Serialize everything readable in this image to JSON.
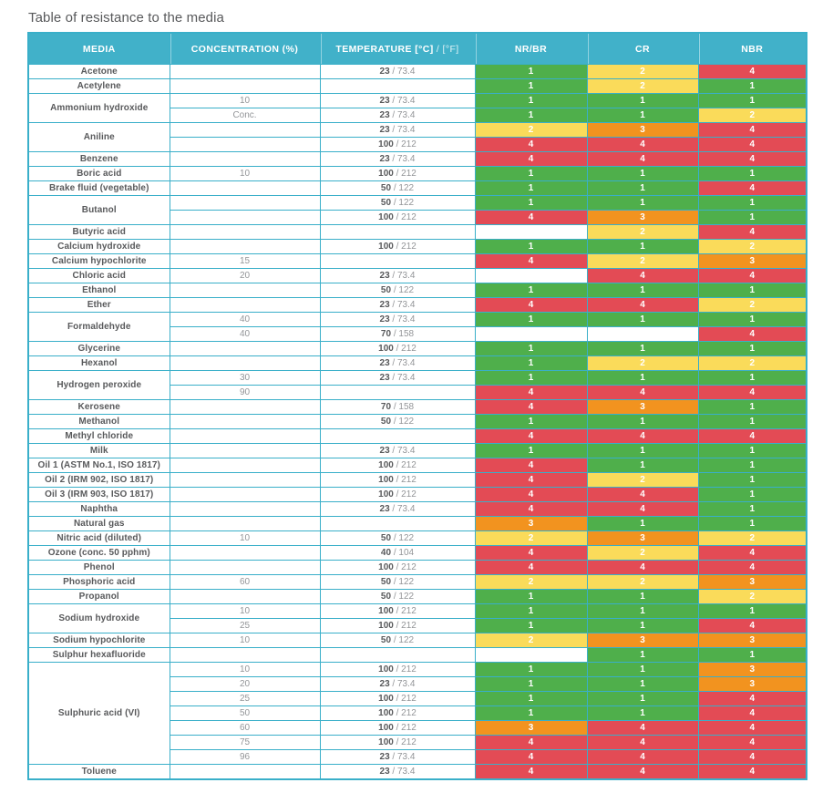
{
  "title": "Table of resistance to the media",
  "colors": {
    "header_bg": "#41B1C9",
    "border": "#39AFC9",
    "stripe": "#ECEDEE",
    "media_text": "#58595B",
    "secondary_text": "#939598"
  },
  "table": {
    "headers": {
      "media": "MEDIA",
      "concentration": "CONCENTRATION (%)",
      "temperature_bold": "TEMPERATURE [°C]",
      "temperature_light": " / [°F]",
      "ratings": [
        "NR/BR",
        "CR",
        "NBR"
      ]
    },
    "rating_colors": {
      "1": "#4FAF4B",
      "2": "#FADB5A",
      "3": "#F2931F",
      "4": "#E34B55"
    },
    "groups": [
      {
        "media": "Acetone",
        "shaded": true,
        "rows": [
          {
            "conc": "",
            "tc": "23",
            "tf": "73.4",
            "r": [
              1,
              2,
              4
            ]
          }
        ]
      },
      {
        "media": "Acetylene",
        "shaded": false,
        "rows": [
          {
            "conc": "",
            "tc": "",
            "tf": "",
            "r": [
              1,
              2,
              1
            ]
          }
        ]
      },
      {
        "media": "Ammonium hydroxide",
        "shaded": true,
        "rows": [
          {
            "conc": "10",
            "tc": "23",
            "tf": "73.4",
            "r": [
              1,
              1,
              1
            ]
          },
          {
            "conc": "Conc.",
            "tc": "23",
            "tf": "73.4",
            "r": [
              1,
              1,
              2
            ]
          }
        ]
      },
      {
        "media": "Aniline",
        "shaded": false,
        "rows": [
          {
            "conc": "",
            "tc": "23",
            "tf": "73.4",
            "r": [
              2,
              3,
              4
            ]
          },
          {
            "conc": "",
            "tc": "100",
            "tf": "212",
            "r": [
              4,
              4,
              4
            ]
          }
        ]
      },
      {
        "media": "Benzene",
        "shaded": true,
        "rows": [
          {
            "conc": "",
            "tc": "23",
            "tf": "73.4",
            "r": [
              4,
              4,
              4
            ]
          }
        ]
      },
      {
        "media": "Boric acid",
        "shaded": false,
        "rows": [
          {
            "conc": "10",
            "tc": "100",
            "tf": "212",
            "r": [
              1,
              1,
              1
            ]
          }
        ]
      },
      {
        "media": "Brake fluid (vegetable)",
        "shaded": true,
        "rows": [
          {
            "conc": "",
            "tc": "50",
            "tf": "122",
            "r": [
              1,
              1,
              4
            ]
          }
        ]
      },
      {
        "media": "Butanol",
        "shaded": false,
        "rows": [
          {
            "conc": "",
            "tc": "50",
            "tf": "122",
            "r": [
              1,
              1,
              1
            ]
          },
          {
            "conc": "",
            "tc": "100",
            "tf": "212",
            "r": [
              4,
              3,
              1
            ]
          }
        ]
      },
      {
        "media": "Butyric acid",
        "shaded": true,
        "rows": [
          {
            "conc": "",
            "tc": "",
            "tf": "",
            "r": [
              null,
              2,
              4
            ]
          }
        ]
      },
      {
        "media": "Calcium hydroxide",
        "shaded": false,
        "rows": [
          {
            "conc": "",
            "tc": "100",
            "tf": "212",
            "r": [
              1,
              1,
              2
            ]
          }
        ]
      },
      {
        "media": "Calcium hypochlorite",
        "shaded": true,
        "rows": [
          {
            "conc": "15",
            "tc": "",
            "tf": "",
            "r": [
              4,
              2,
              3
            ]
          }
        ]
      },
      {
        "media": "Chloric acid",
        "shaded": false,
        "rows": [
          {
            "conc": "20",
            "tc": "23",
            "tf": "73.4",
            "r": [
              null,
              4,
              4
            ]
          }
        ]
      },
      {
        "media": "Ethanol",
        "shaded": true,
        "rows": [
          {
            "conc": "",
            "tc": "50",
            "tf": "122",
            "r": [
              1,
              1,
              1
            ]
          }
        ]
      },
      {
        "media": "Ether",
        "shaded": false,
        "rows": [
          {
            "conc": "",
            "tc": "23",
            "tf": "73.4",
            "r": [
              4,
              4,
              2
            ]
          }
        ]
      },
      {
        "media": "Formaldehyde",
        "shaded": true,
        "rows": [
          {
            "conc": "40",
            "tc": "23",
            "tf": "73.4",
            "r": [
              1,
              1,
              1
            ]
          },
          {
            "conc": "40",
            "tc": "70",
            "tf": "158",
            "r": [
              null,
              null,
              4
            ]
          }
        ]
      },
      {
        "media": "Glycerine",
        "shaded": false,
        "rows": [
          {
            "conc": "",
            "tc": "100",
            "tf": "212",
            "r": [
              1,
              1,
              1
            ]
          }
        ]
      },
      {
        "media": "Hexanol",
        "shaded": true,
        "rows": [
          {
            "conc": "",
            "tc": "23",
            "tf": "73.4",
            "r": [
              1,
              2,
              2
            ]
          }
        ]
      },
      {
        "media": "Hydrogen peroxide",
        "shaded": false,
        "rows": [
          {
            "conc": "30",
            "tc": "23",
            "tf": "73.4",
            "r": [
              1,
              1,
              1
            ]
          },
          {
            "conc": "90",
            "tc": "",
            "tf": "",
            "r": [
              4,
              4,
              4
            ]
          }
        ]
      },
      {
        "media": "Kerosene",
        "shaded": true,
        "rows": [
          {
            "conc": "",
            "tc": "70",
            "tf": "158",
            "r": [
              4,
              3,
              1
            ]
          }
        ]
      },
      {
        "media": "Methanol",
        "shaded": false,
        "rows": [
          {
            "conc": "",
            "tc": "50",
            "tf": "122",
            "r": [
              1,
              1,
              1
            ]
          }
        ]
      },
      {
        "media": "Methyl chloride",
        "shaded": true,
        "rows": [
          {
            "conc": "",
            "tc": "",
            "tf": "",
            "r": [
              4,
              4,
              4
            ]
          }
        ]
      },
      {
        "media": "Milk",
        "shaded": false,
        "rows": [
          {
            "conc": "",
            "tc": "23",
            "tf": "73.4",
            "r": [
              1,
              1,
              1
            ]
          }
        ]
      },
      {
        "media": "Oil 1 (ASTM No.1, ISO 1817)",
        "shaded": true,
        "rows": [
          {
            "conc": "",
            "tc": "100",
            "tf": "212",
            "r": [
              4,
              1,
              1
            ]
          }
        ]
      },
      {
        "media": "Oil 2 (IRM 902, ISO 1817)",
        "shaded": false,
        "rows": [
          {
            "conc": "",
            "tc": "100",
            "tf": "212",
            "r": [
              4,
              2,
              1
            ]
          }
        ]
      },
      {
        "media": "Oil 3 (IRM 903, ISO 1817)",
        "shaded": true,
        "rows": [
          {
            "conc": "",
            "tc": "100",
            "tf": "212",
            "r": [
              4,
              4,
              1
            ]
          }
        ]
      },
      {
        "media": "Naphtha",
        "shaded": false,
        "rows": [
          {
            "conc": "",
            "tc": "23",
            "tf": "73.4",
            "r": [
              4,
              4,
              1
            ]
          }
        ]
      },
      {
        "media": "Natural gas",
        "shaded": true,
        "rows": [
          {
            "conc": "",
            "tc": "",
            "tf": "",
            "r": [
              3,
              1,
              1
            ]
          }
        ]
      },
      {
        "media": "Nitric acid (diluted)",
        "shaded": false,
        "rows": [
          {
            "conc": "10",
            "tc": "50",
            "tf": "122",
            "r": [
              2,
              3,
              2
            ]
          }
        ]
      },
      {
        "media": "Ozone (conc. 50 pphm)",
        "shaded": true,
        "rows": [
          {
            "conc": "",
            "tc": "40",
            "tf": "104",
            "r": [
              4,
              2,
              4
            ]
          }
        ]
      },
      {
        "media": "Phenol",
        "shaded": false,
        "rows": [
          {
            "conc": "",
            "tc": "100",
            "tf": "212",
            "r": [
              4,
              4,
              4
            ]
          }
        ]
      },
      {
        "media": "Phosphoric acid",
        "shaded": true,
        "rows": [
          {
            "conc": "60",
            "tc": "50",
            "tf": "122",
            "r": [
              2,
              2,
              3
            ]
          }
        ]
      },
      {
        "media": "Propanol",
        "shaded": false,
        "rows": [
          {
            "conc": "",
            "tc": "50",
            "tf": "122",
            "r": [
              1,
              1,
              2
            ]
          }
        ]
      },
      {
        "media": "Sodium hydroxide",
        "shaded": true,
        "rows": [
          {
            "conc": "10",
            "tc": "100",
            "tf": "212",
            "r": [
              1,
              1,
              1
            ]
          },
          {
            "conc": "25",
            "tc": "100",
            "tf": "212",
            "r": [
              1,
              1,
              4
            ]
          }
        ]
      },
      {
        "media": "Sodium hypochlorite",
        "shaded": false,
        "rows": [
          {
            "conc": "10",
            "tc": "50",
            "tf": "122",
            "r": [
              2,
              3,
              3
            ]
          }
        ]
      },
      {
        "media": "Sulphur hexafluoride",
        "shaded": true,
        "rows": [
          {
            "conc": "",
            "tc": "",
            "tf": "",
            "r": [
              null,
              1,
              1
            ]
          }
        ]
      },
      {
        "media": "Sulphuric acid (VI)",
        "shaded": false,
        "rows": [
          {
            "conc": "10",
            "tc": "100",
            "tf": "212",
            "r": [
              1,
              1,
              3
            ]
          },
          {
            "conc": "20",
            "tc": "23",
            "tf": "73.4",
            "r": [
              1,
              1,
              3
            ]
          },
          {
            "conc": "25",
            "tc": "100",
            "tf": "212",
            "r": [
              1,
              1,
              4
            ]
          },
          {
            "conc": "50",
            "tc": "100",
            "tf": "212",
            "r": [
              1,
              1,
              4
            ]
          },
          {
            "conc": "60",
            "tc": "100",
            "tf": "212",
            "r": [
              3,
              4,
              4
            ]
          },
          {
            "conc": "75",
            "tc": "100",
            "tf": "212",
            "r": [
              4,
              4,
              4
            ]
          },
          {
            "conc": "96",
            "tc": "23",
            "tf": "73.4",
            "r": [
              4,
              4,
              4
            ]
          }
        ]
      },
      {
        "media": "Toluene",
        "shaded": true,
        "rows": [
          {
            "conc": "",
            "tc": "23",
            "tf": "73.4",
            "r": [
              4,
              4,
              4
            ]
          }
        ]
      }
    ]
  }
}
